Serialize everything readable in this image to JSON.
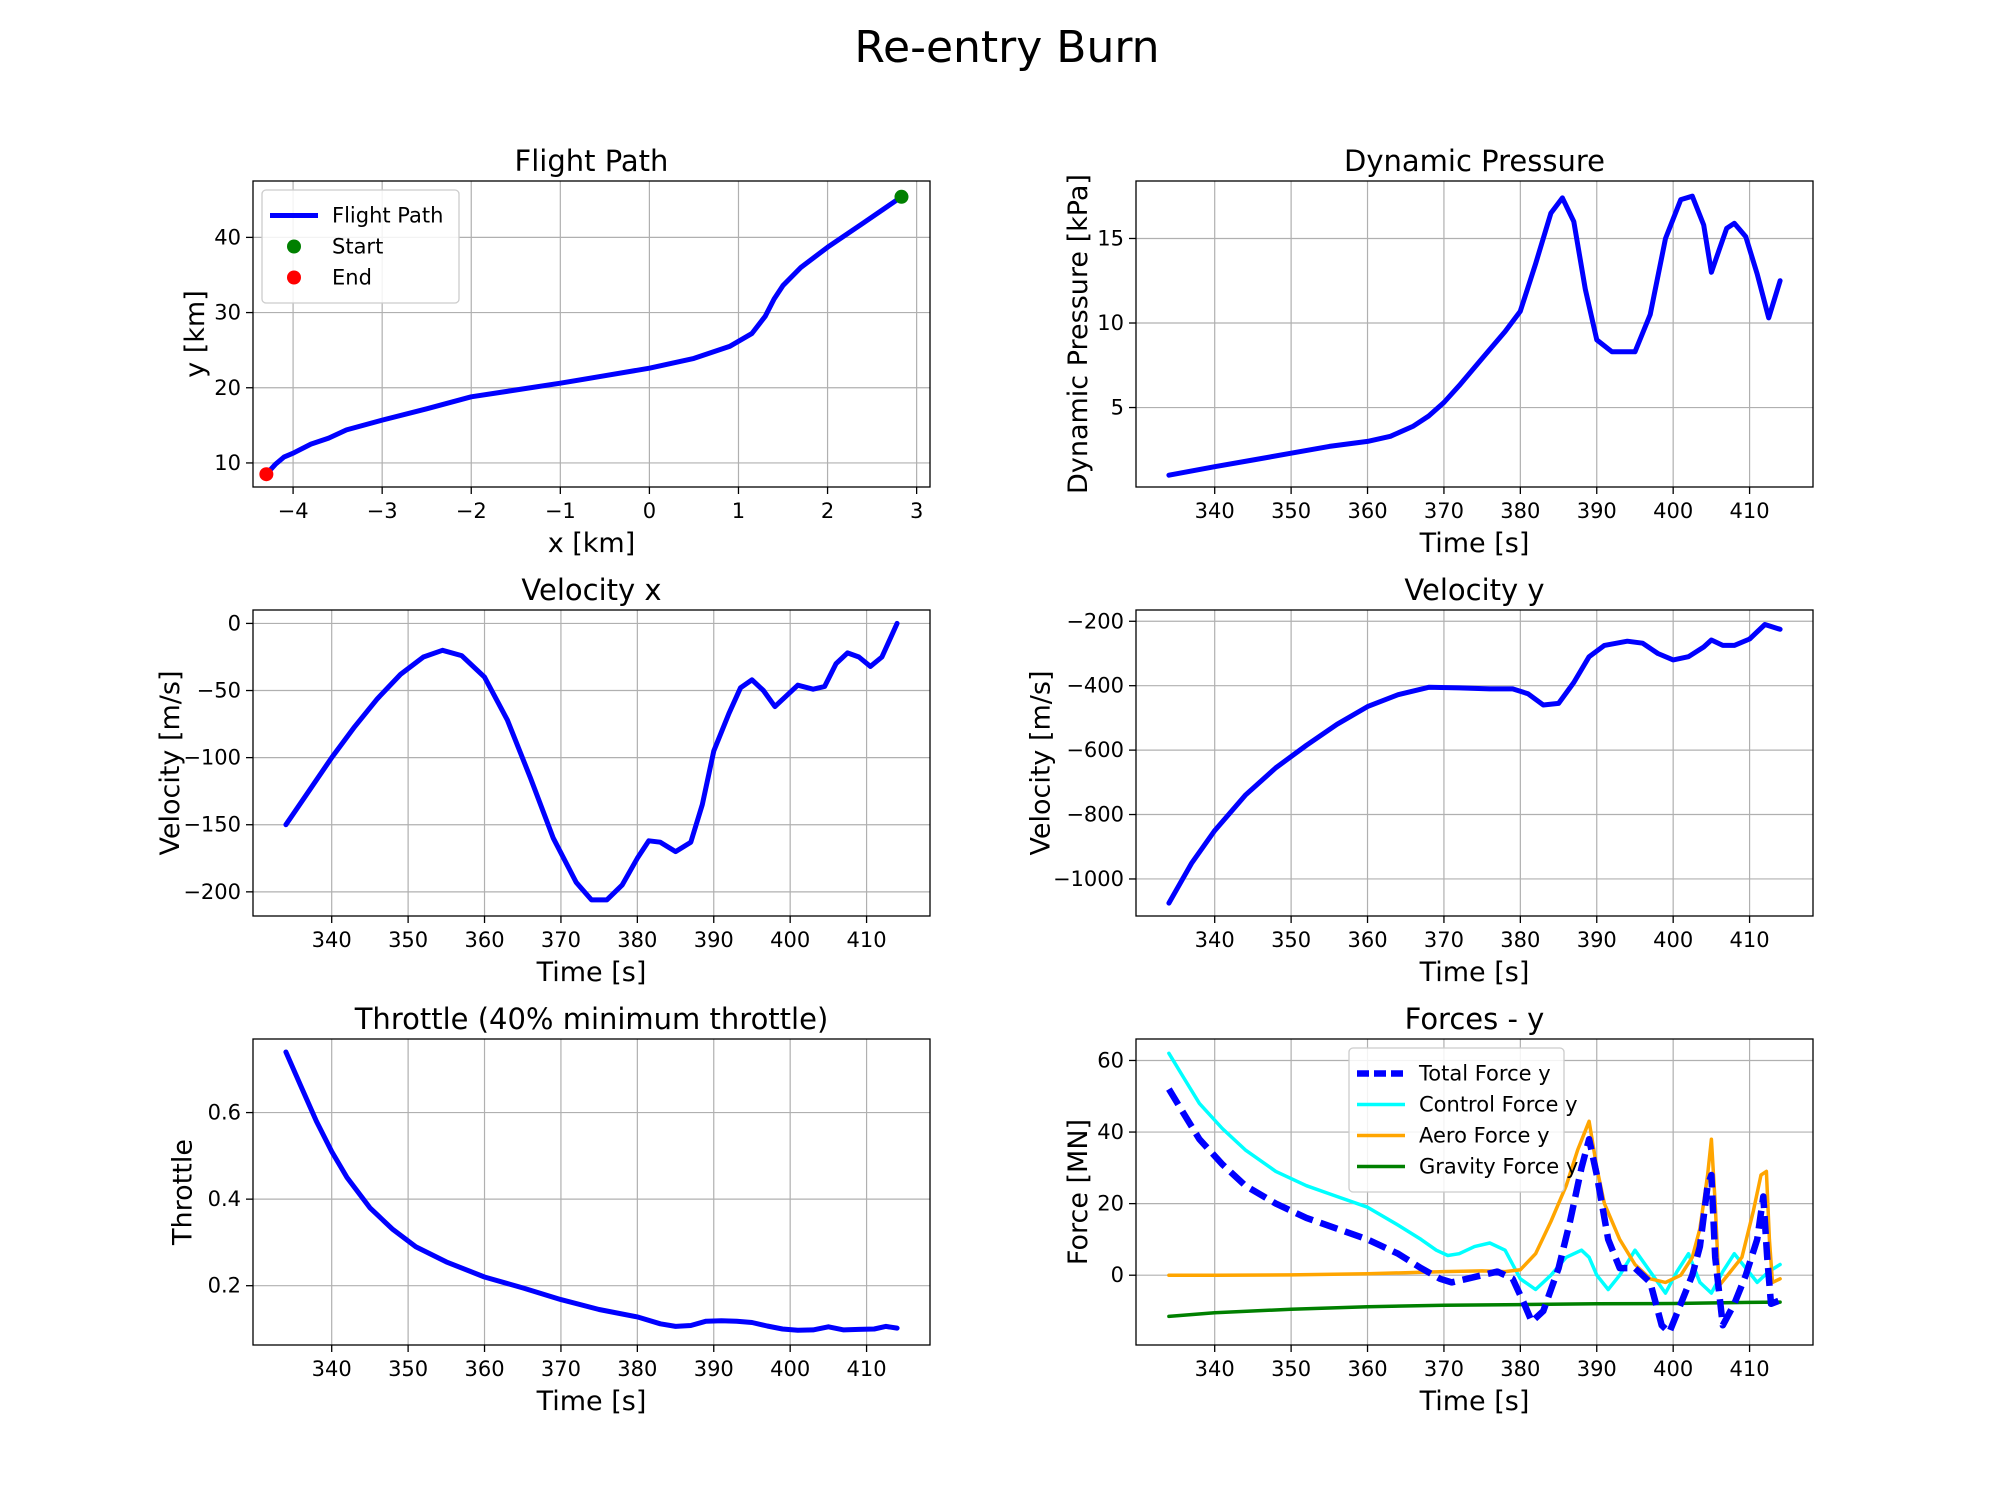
{
  "figure": {
    "suptitle": "Re-entry Burn"
  },
  "colors": {
    "blue": "#0000ff",
    "cyan": "#00ffff",
    "orange": "#ffa500",
    "green": "#008000",
    "red": "#ff0000",
    "grid": "#b0b0b0",
    "axis": "#000000"
  },
  "chart_data": [
    {
      "id": "flight",
      "type": "line",
      "title": "Flight Path",
      "xlabel": "x [km]",
      "ylabel": "y [km]",
      "xlim": [
        -4.45,
        3.15
      ],
      "ylim": [
        6.8,
        47.5
      ],
      "xticks": [
        -4,
        -3,
        -2,
        -1,
        0,
        1,
        2,
        3
      ],
      "yticks": [
        10,
        20,
        30,
        40
      ],
      "grid": true,
      "legend": {
        "position": "upper-left",
        "entries": [
          "Flight Path",
          "Start",
          "End"
        ]
      },
      "series": [
        {
          "name": "Flight Path",
          "color": "blue",
          "width": 5,
          "dash": "",
          "x": [
            -4.3,
            -4.2,
            -4.1,
            -4.0,
            -3.8,
            -3.6,
            -3.4,
            -3.0,
            -2.5,
            -2.0,
            -1.5,
            -1.0,
            -0.5,
            0.0,
            0.5,
            0.9,
            1.15,
            1.3,
            1.4,
            1.5,
            1.7,
            2.0,
            2.4,
            2.83
          ],
          "y": [
            8.5,
            9.8,
            10.8,
            11.3,
            12.5,
            13.3,
            14.4,
            15.7,
            17.2,
            18.8,
            19.7,
            20.6,
            21.6,
            22.6,
            23.9,
            25.5,
            27.2,
            29.5,
            31.8,
            33.6,
            36.0,
            38.7,
            41.9,
            45.4
          ]
        }
      ],
      "points": [
        {
          "name": "Start",
          "color": "green",
          "x": 2.83,
          "y": 45.4
        },
        {
          "name": "End",
          "color": "red",
          "x": -4.3,
          "y": 8.5
        }
      ]
    },
    {
      "id": "dynp",
      "type": "line",
      "title": "Dynamic Pressure",
      "xlabel": "Time [s]",
      "ylabel": "Dynamic Pressure [kPa]",
      "xlim": [
        329.7,
        418.3
      ],
      "ylim": [
        0.3,
        18.4
      ],
      "xticks": [
        340,
        350,
        360,
        370,
        380,
        390,
        400,
        410
      ],
      "yticks": [
        5,
        10,
        15
      ],
      "grid": true,
      "series": [
        {
          "name": "",
          "color": "blue",
          "width": 5,
          "dash": "",
          "x": [
            334,
            340,
            345,
            350,
            355,
            360,
            363,
            366,
            368,
            370,
            372,
            375,
            378,
            380,
            382,
            384,
            385.5,
            387,
            388.5,
            390,
            392,
            395,
            397,
            399,
            401,
            402.5,
            404,
            405,
            406,
            407,
            408,
            409.5,
            411,
            412.5,
            414
          ],
          "y": [
            1.0,
            1.5,
            1.9,
            2.3,
            2.7,
            3.0,
            3.3,
            3.9,
            4.5,
            5.3,
            6.3,
            7.9,
            9.5,
            10.7,
            13.5,
            16.5,
            17.4,
            16.0,
            12.0,
            9.0,
            8.3,
            8.3,
            10.5,
            15.0,
            17.3,
            17.5,
            15.8,
            13.0,
            14.3,
            15.6,
            15.9,
            15.1,
            12.9,
            10.3,
            12.5
          ]
        }
      ]
    },
    {
      "id": "vx",
      "type": "line",
      "title": "Velocity x",
      "xlabel": "Time [s]",
      "ylabel": "Velocity [m/s]",
      "xlim": [
        329.7,
        418.3
      ],
      "ylim": [
        -218,
        10
      ],
      "xticks": [
        340,
        350,
        360,
        370,
        380,
        390,
        400,
        410
      ],
      "yticks": [
        0,
        -50,
        -100,
        -150,
        -200
      ],
      "grid": true,
      "series": [
        {
          "name": "",
          "color": "blue",
          "width": 5,
          "dash": "",
          "x": [
            334,
            337,
            340,
            343,
            346,
            349,
            352,
            354.5,
            357,
            360,
            363,
            366,
            369,
            372,
            374,
            376,
            378,
            380,
            381.5,
            383,
            385,
            387,
            388.5,
            390,
            392,
            393.5,
            395,
            396.5,
            398,
            399.5,
            401,
            403,
            404.5,
            406,
            407.5,
            409,
            410.5,
            412,
            414
          ],
          "y": [
            -150,
            -125,
            -100,
            -77,
            -56,
            -38,
            -25,
            -20,
            -24,
            -40,
            -72,
            -115,
            -160,
            -193,
            -206,
            -206,
            -195,
            -175,
            -162,
            -163,
            -170,
            -163,
            -135,
            -95,
            -67,
            -48,
            -42,
            -50,
            -62,
            -54,
            -46,
            -49,
            -47,
            -30,
            -22,
            -25,
            -32,
            -25,
            0
          ]
        }
      ]
    },
    {
      "id": "vy",
      "type": "line",
      "title": "Velocity y",
      "xlabel": "Time [s]",
      "ylabel": "Velocity [m/s]",
      "xlim": [
        329.7,
        418.3
      ],
      "ylim": [
        -1115,
        -165
      ],
      "xticks": [
        340,
        350,
        360,
        370,
        380,
        390,
        400,
        410
      ],
      "yticks": [
        -200,
        -400,
        -600,
        -800,
        -1000
      ],
      "grid": true,
      "series": [
        {
          "name": "",
          "color": "blue",
          "width": 5,
          "dash": "",
          "x": [
            334,
            337,
            340,
            344,
            348,
            352,
            356,
            360,
            364,
            368,
            372,
            376,
            379,
            381,
            383,
            385,
            387,
            389,
            391,
            394,
            396,
            398,
            400,
            402,
            404,
            405,
            406.5,
            408,
            410,
            412,
            414
          ],
          "y": [
            -1075,
            -950,
            -850,
            -740,
            -655,
            -585,
            -520,
            -465,
            -428,
            -405,
            -407,
            -410,
            -410,
            -425,
            -460,
            -455,
            -390,
            -310,
            -275,
            -262,
            -268,
            -300,
            -320,
            -310,
            -280,
            -258,
            -275,
            -275,
            -255,
            -210,
            -225
          ]
        }
      ]
    },
    {
      "id": "throttle",
      "type": "line",
      "title": "Throttle (40% minimum throttle)",
      "xlabel": "Time [s]",
      "ylabel": "Throttle",
      "xlim": [
        329.7,
        418.3
      ],
      "ylim": [
        0.063,
        0.77
      ],
      "xticks": [
        340,
        350,
        360,
        370,
        380,
        390,
        400,
        410
      ],
      "yticks": [
        0.2,
        0.4,
        0.6
      ],
      "grid": true,
      "series": [
        {
          "name": "",
          "color": "blue",
          "width": 5,
          "dash": "",
          "x": [
            334,
            336,
            338,
            340,
            342,
            345,
            348,
            351,
            355,
            360,
            365,
            370,
            375,
            380,
            383,
            385,
            387,
            389,
            391,
            393,
            395,
            397,
            399,
            401,
            403,
            405,
            407,
            409,
            411,
            412.5,
            414
          ],
          "y": [
            0.74,
            0.66,
            0.58,
            0.51,
            0.45,
            0.38,
            0.33,
            0.29,
            0.255,
            0.22,
            0.195,
            0.168,
            0.145,
            0.128,
            0.112,
            0.106,
            0.108,
            0.118,
            0.119,
            0.118,
            0.115,
            0.107,
            0.1,
            0.097,
            0.098,
            0.105,
            0.098,
            0.099,
            0.1,
            0.106,
            0.102
          ]
        }
      ]
    },
    {
      "id": "forces",
      "type": "line",
      "title": "Forces - y",
      "xlabel": "Time [s]",
      "ylabel": "Force [MN]",
      "xlim": [
        329.7,
        418.3
      ],
      "ylim": [
        -19.5,
        66
      ],
      "xticks": [
        340,
        350,
        360,
        370,
        380,
        390,
        400,
        410
      ],
      "yticks": [
        0,
        20,
        40,
        60
      ],
      "grid": true,
      "legend": {
        "position": "upper-center",
        "entries": [
          "Total Force y",
          "Control Force y",
          "Aero Force y",
          "Gravity Force y"
        ]
      },
      "series": [
        {
          "name": "Control Force y",
          "color": "cyan",
          "width": 3.5,
          "dash": "",
          "x": [
            334,
            336,
            338,
            341,
            344,
            348,
            352,
            356,
            360,
            364,
            367,
            369,
            370.5,
            372,
            374,
            376,
            378,
            380,
            382,
            384,
            386,
            388,
            389,
            390,
            391.5,
            393,
            395,
            397,
            399,
            400.5,
            402,
            403.5,
            405,
            406.5,
            408,
            409.5,
            411,
            412.5,
            414
          ],
          "y": [
            62,
            55,
            48,
            41,
            35,
            29,
            25,
            22,
            19,
            14,
            10,
            7,
            5.5,
            6,
            8,
            9,
            7,
            -1,
            -4,
            0,
            5,
            7,
            5,
            0,
            -4,
            0,
            7,
            1,
            -5,
            1,
            6,
            -2,
            -5,
            1,
            6,
            2,
            -2,
            1,
            3
          ]
        },
        {
          "name": "Aero Force y",
          "color": "orange",
          "width": 3.5,
          "dash": "",
          "x": [
            334,
            340,
            350,
            360,
            370,
            375,
            378,
            380,
            382,
            384,
            386,
            387.5,
            389,
            390,
            391,
            393,
            395,
            397,
            399,
            401,
            402.5,
            403.5,
            404.5,
            405,
            405.5,
            406,
            407.5,
            409,
            410.5,
            411.5,
            412.2,
            412.6,
            413,
            414
          ],
          "y": [
            0,
            0,
            0.1,
            0.4,
            1,
            1.2,
            1,
            1.5,
            6,
            15,
            25,
            35,
            43,
            30,
            20,
            10,
            3,
            -1,
            -2,
            0,
            5,
            13,
            28,
            38,
            20,
            -3,
            1,
            5,
            18,
            28,
            29,
            10,
            -2,
            -1
          ]
        },
        {
          "name": "Gravity Force y",
          "color": "green",
          "width": 3.5,
          "dash": "",
          "x": [
            334,
            340,
            350,
            360,
            370,
            380,
            390,
            400,
            410,
            414
          ],
          "y": [
            -11.5,
            -10.5,
            -9.5,
            -8.8,
            -8.4,
            -8.2,
            -8.0,
            -7.9,
            -7.6,
            -7.5
          ]
        },
        {
          "name": "Total Force y",
          "color": "blue",
          "width": 6.5,
          "dash": "18,8",
          "x": [
            334,
            336,
            338,
            341,
            344,
            348,
            352,
            356,
            360,
            364,
            367,
            369.5,
            371,
            373,
            375,
            377,
            379,
            380.5,
            381.5,
            383,
            385,
            386.5,
            388,
            389,
            390,
            391.5,
            393,
            395,
            397,
            398.5,
            399.5,
            401,
            402.5,
            403.5,
            404.5,
            405,
            405.5,
            406.5,
            408,
            409.5,
            411,
            411.8,
            412.3,
            412.8,
            414
          ],
          "y": [
            52,
            45,
            38,
            31,
            25,
            20,
            16,
            13,
            10,
            6,
            2,
            -1,
            -2,
            -1,
            0,
            1,
            -1,
            -8,
            -13,
            -10,
            2,
            15,
            30,
            38,
            28,
            10,
            2,
            2,
            -2,
            -14,
            -16,
            -8,
            0,
            8,
            25,
            28,
            5,
            -14,
            -8,
            0,
            10,
            22,
            5,
            -8,
            -7
          ]
        }
      ]
    }
  ]
}
